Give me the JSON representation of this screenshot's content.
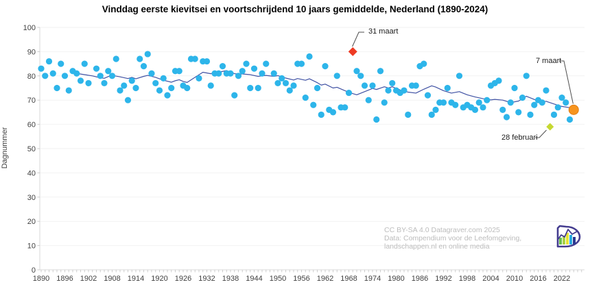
{
  "title": "Vinddag eerste kievitsei en voortschrijdend 10 jaars gemiddelde, Nederland (1890-2024)",
  "y_axis": {
    "label": "Dagnummer",
    "min": 0,
    "max": 100,
    "ticks": [
      0,
      10,
      20,
      30,
      40,
      50,
      60,
      70,
      80,
      90,
      100
    ]
  },
  "x_axis": {
    "min": 1890,
    "max": 2025,
    "tick_labels": [
      1890,
      1896,
      1902,
      1908,
      1914,
      1920,
      1926,
      1932,
      1938,
      1944,
      1950,
      1956,
      1962,
      1968,
      1974,
      1980,
      1986,
      1992,
      1998,
      2004,
      2010,
      2016,
      2022
    ]
  },
  "annotations": [
    {
      "id": "record-late",
      "label": "31 maart",
      "year": 1969,
      "day": 90,
      "marker": "diamond",
      "color": "#ee3b24"
    },
    {
      "id": "latest",
      "label": "7 maart",
      "year": 2025,
      "day": 66,
      "marker": "circle",
      "color": "#f7941e"
    },
    {
      "id": "record-early",
      "label": "28 februari",
      "year": 2019,
      "day": 59,
      "marker": "diamond",
      "color": "#c6d831"
    }
  ],
  "attribution": {
    "line1": "CC BY-SA 4.0 Datagraver.com 2025",
    "line2": "Data: Compendium voor de Leefomgeving,",
    "line3": "landschappen.nl en online media"
  },
  "logo_name": "datagraver-logo",
  "colors": {
    "dot": "#2db5ea",
    "trend_line": "#3f51a3",
    "record_late": "#ee3b24",
    "record_early": "#c6d831",
    "latest_point": "#f7941e",
    "grid": "#f2f2f2",
    "axis": "#d9d9d9",
    "tick": "#cccccc",
    "tick_text": "#3f3f3f",
    "leader": "#4d4d4d",
    "attribution_text": "#bcbcbc",
    "logo_purple": "#443c8f"
  },
  "chart_data": {
    "type": "scatter",
    "title": "Vinddag eerste kievitsei en voortschrijdend 10 jaars gemiddelde, Nederland (1890-2024)",
    "xlabel": "",
    "ylabel": "Dagnummer",
    "xlim": [
      1889,
      2027
    ],
    "ylim": [
      0,
      100
    ],
    "grid": "horizontal-faint",
    "legend": "none",
    "series": [
      {
        "name": "Vinddag eerste kievitsei",
        "type": "scatter",
        "color": "#2db5ea",
        "points": [
          [
            1890,
            83
          ],
          [
            1891,
            80
          ],
          [
            1892,
            86
          ],
          [
            1893,
            81
          ],
          [
            1894,
            75
          ],
          [
            1895,
            85
          ],
          [
            1896,
            80
          ],
          [
            1897,
            74
          ],
          [
            1898,
            82
          ],
          [
            1899,
            81
          ],
          [
            1900,
            78
          ],
          [
            1901,
            85
          ],
          [
            1902,
            77
          ],
          [
            1904,
            83
          ],
          [
            1905,
            80
          ],
          [
            1906,
            77
          ],
          [
            1907,
            82
          ],
          [
            1908,
            80
          ],
          [
            1909,
            87
          ],
          [
            1910,
            74
          ],
          [
            1911,
            76
          ],
          [
            1912,
            70
          ],
          [
            1913,
            78
          ],
          [
            1914,
            75
          ],
          [
            1915,
            87
          ],
          [
            1916,
            84
          ],
          [
            1917,
            89
          ],
          [
            1918,
            81
          ],
          [
            1919,
            77
          ],
          [
            1920,
            74
          ],
          [
            1921,
            79
          ],
          [
            1922,
            72
          ],
          [
            1923,
            75
          ],
          [
            1924,
            82
          ],
          [
            1925,
            82
          ],
          [
            1926,
            76
          ],
          [
            1927,
            75
          ],
          [
            1928,
            87
          ],
          [
            1929,
            87
          ],
          [
            1930,
            79
          ],
          [
            1931,
            86
          ],
          [
            1932,
            86
          ],
          [
            1933,
            76
          ],
          [
            1934,
            81
          ],
          [
            1935,
            81
          ],
          [
            1936,
            84
          ],
          [
            1937,
            81
          ],
          [
            1938,
            81
          ],
          [
            1939,
            72
          ],
          [
            1940,
            80
          ],
          [
            1941,
            82
          ],
          [
            1942,
            85
          ],
          [
            1943,
            75
          ],
          [
            1944,
            83
          ],
          [
            1945,
            75
          ],
          [
            1946,
            81
          ],
          [
            1947,
            85
          ],
          [
            1949,
            81
          ],
          [
            1950,
            77
          ],
          [
            1951,
            79
          ],
          [
            1952,
            77
          ],
          [
            1953,
            74
          ],
          [
            1954,
            76
          ],
          [
            1955,
            85
          ],
          [
            1956,
            85
          ],
          [
            1957,
            71
          ],
          [
            1958,
            88
          ],
          [
            1959,
            68
          ],
          [
            1960,
            75
          ],
          [
            1961,
            64
          ],
          [
            1962,
            84
          ],
          [
            1963,
            66
          ],
          [
            1964,
            65
          ],
          [
            1965,
            80
          ],
          [
            1966,
            67
          ],
          [
            1967,
            67
          ],
          [
            1968,
            73
          ],
          [
            1970,
            82
          ],
          [
            1971,
            80
          ],
          [
            1972,
            76
          ],
          [
            1973,
            70
          ],
          [
            1974,
            76
          ],
          [
            1975,
            62
          ],
          [
            1976,
            82
          ],
          [
            1977,
            69
          ],
          [
            1978,
            74
          ],
          [
            1979,
            77
          ],
          [
            1980,
            74
          ],
          [
            1981,
            73
          ],
          [
            1982,
            74
          ],
          [
            1983,
            64
          ],
          [
            1984,
            76
          ],
          [
            1985,
            76
          ],
          [
            1986,
            84
          ],
          [
            1987,
            85
          ],
          [
            1988,
            72
          ],
          [
            1989,
            64
          ],
          [
            1990,
            66
          ],
          [
            1991,
            69
          ],
          [
            1992,
            69
          ],
          [
            1993,
            75
          ],
          [
            1994,
            69
          ],
          [
            1995,
            68
          ],
          [
            1996,
            80
          ],
          [
            1997,
            67
          ],
          [
            1998,
            68
          ],
          [
            1999,
            67
          ],
          [
            2000,
            66
          ],
          [
            2001,
            69
          ],
          [
            2002,
            67
          ],
          [
            2003,
            70
          ],
          [
            2004,
            76
          ],
          [
            2005,
            77
          ],
          [
            2006,
            78
          ],
          [
            2007,
            66
          ],
          [
            2008,
            63
          ],
          [
            2009,
            69
          ],
          [
            2010,
            75
          ],
          [
            2011,
            65
          ],
          [
            2012,
            71
          ],
          [
            2013,
            80
          ],
          [
            2014,
            64
          ],
          [
            2015,
            68
          ],
          [
            2016,
            70
          ],
          [
            2017,
            69
          ],
          [
            2018,
            74
          ],
          [
            2020,
            64
          ],
          [
            2021,
            67
          ],
          [
            2022,
            71
          ],
          [
            2023,
            69
          ],
          [
            2024,
            62
          ]
        ]
      },
      {
        "name": "Voortschrijdend 10 jaars gemiddelde",
        "type": "line",
        "color": "#3f51a3",
        "points": [
          [
            1899,
            81.0
          ],
          [
            1901,
            80.5
          ],
          [
            1903,
            80.0
          ],
          [
            1905,
            79.2
          ],
          [
            1906,
            79.0
          ],
          [
            1907,
            79.7
          ],
          [
            1908,
            80.2
          ],
          [
            1910,
            79.6
          ],
          [
            1912,
            78.9
          ],
          [
            1913,
            79.4
          ],
          [
            1914,
            78.8
          ],
          [
            1916,
            79.8
          ],
          [
            1917,
            80.2
          ],
          [
            1919,
            79.4
          ],
          [
            1921,
            78.2
          ],
          [
            1923,
            77.4
          ],
          [
            1924,
            78.0
          ],
          [
            1925,
            78.4
          ],
          [
            1926,
            77.7
          ],
          [
            1927,
            77.3
          ],
          [
            1929,
            79.4
          ],
          [
            1931,
            81.5
          ],
          [
            1933,
            80.9
          ],
          [
            1935,
            81.5
          ],
          [
            1937,
            82.2
          ],
          [
            1939,
            80.9
          ],
          [
            1941,
            80.8
          ],
          [
            1943,
            80.5
          ],
          [
            1945,
            79.8
          ],
          [
            1947,
            80.2
          ],
          [
            1949,
            79.8
          ],
          [
            1950,
            80.1
          ],
          [
            1952,
            79.1
          ],
          [
            1954,
            78.3
          ],
          [
            1955,
            78.9
          ],
          [
            1957,
            78.2
          ],
          [
            1958,
            78.8
          ],
          [
            1960,
            77.2
          ],
          [
            1961,
            76.2
          ],
          [
            1962,
            76.6
          ],
          [
            1964,
            75.0
          ],
          [
            1965,
            75.3
          ],
          [
            1967,
            73.9
          ],
          [
            1969,
            72.7
          ],
          [
            1970,
            72.2
          ],
          [
            1972,
            73.5
          ],
          [
            1974,
            74.8
          ],
          [
            1975,
            74.4
          ],
          [
            1977,
            75.5
          ],
          [
            1978,
            75.0
          ],
          [
            1979,
            75.5
          ],
          [
            1981,
            74.2
          ],
          [
            1983,
            73.3
          ],
          [
            1985,
            72.9
          ],
          [
            1987,
            74.5
          ],
          [
            1989,
            75.9
          ],
          [
            1990,
            75.4
          ],
          [
            1992,
            73.9
          ],
          [
            1993,
            73.4
          ],
          [
            1994,
            72.9
          ],
          [
            1996,
            73.5
          ],
          [
            1998,
            72.2
          ],
          [
            2000,
            71.3
          ],
          [
            2002,
            70.6
          ],
          [
            2004,
            70.1
          ],
          [
            2005,
            70.3
          ],
          [
            2007,
            70.0
          ],
          [
            2009,
            69.0
          ],
          [
            2011,
            69.6
          ],
          [
            2013,
            71.6
          ],
          [
            2015,
            70.3
          ],
          [
            2017,
            69.2
          ],
          [
            2018,
            69.5
          ],
          [
            2020,
            68.4
          ],
          [
            2022,
            67.4
          ],
          [
            2024,
            66.9
          ],
          [
            2025,
            66.6
          ]
        ]
      }
    ],
    "highlighted_points": [
      {
        "label": "31 maart",
        "year": 1969,
        "day": 90
      },
      {
        "label": "28 februari",
        "year": 2019,
        "day": 59
      },
      {
        "label": "7 maart",
        "year": 2025,
        "day": 66
      }
    ]
  }
}
